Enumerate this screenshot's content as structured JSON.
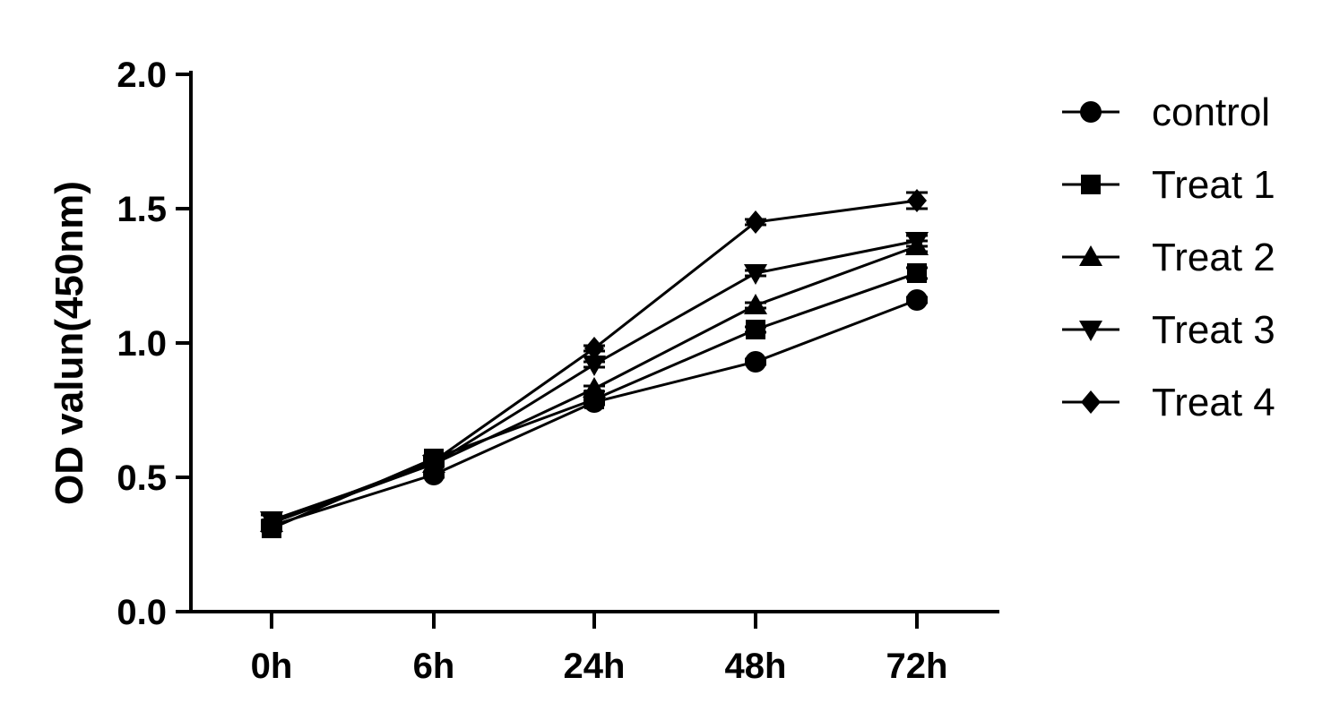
{
  "chart_data": {
    "type": "line",
    "title": "",
    "xlabel": "",
    "ylabel": "OD valun(450nm)",
    "categories": [
      "0h",
      "6h",
      "24h",
      "48h",
      "72h"
    ],
    "ylim": [
      0,
      2.0
    ],
    "yticks": [
      "0.0",
      "0.5",
      "1.0",
      "1.5",
      "2.0"
    ],
    "ytick_values": [
      0,
      0.5,
      1.0,
      1.5,
      2.0
    ],
    "grid": false,
    "legend_position": "right",
    "color": "#000000",
    "series": [
      {
        "name": "control",
        "marker": "circle",
        "values": [
          0.32,
          0.51,
          0.78,
          0.93,
          1.16
        ],
        "errors": [
          0.01,
          0.01,
          0.01,
          0.01,
          0.01
        ]
      },
      {
        "name": "Treat 1",
        "marker": "square",
        "values": [
          0.31,
          0.57,
          0.79,
          1.05,
          1.26
        ],
        "errors": [
          0.01,
          0.01,
          0.01,
          0.01,
          0.02
        ]
      },
      {
        "name": "Treat 2",
        "marker": "triangle-up",
        "values": [
          0.33,
          0.55,
          0.83,
          1.14,
          1.36
        ],
        "errors": [
          0.01,
          0.01,
          0.01,
          0.01,
          0.02
        ]
      },
      {
        "name": "Treat 3",
        "marker": "triangle-down",
        "values": [
          0.34,
          0.55,
          0.92,
          1.26,
          1.38
        ],
        "errors": [
          0.02,
          0.01,
          0.01,
          0.01,
          0.02
        ]
      },
      {
        "name": "Treat 4",
        "marker": "diamond",
        "values": [
          0.33,
          0.56,
          0.98,
          1.45,
          1.53
        ],
        "errors": [
          0.01,
          0.01,
          0.01,
          0.01,
          0.03
        ]
      }
    ]
  }
}
